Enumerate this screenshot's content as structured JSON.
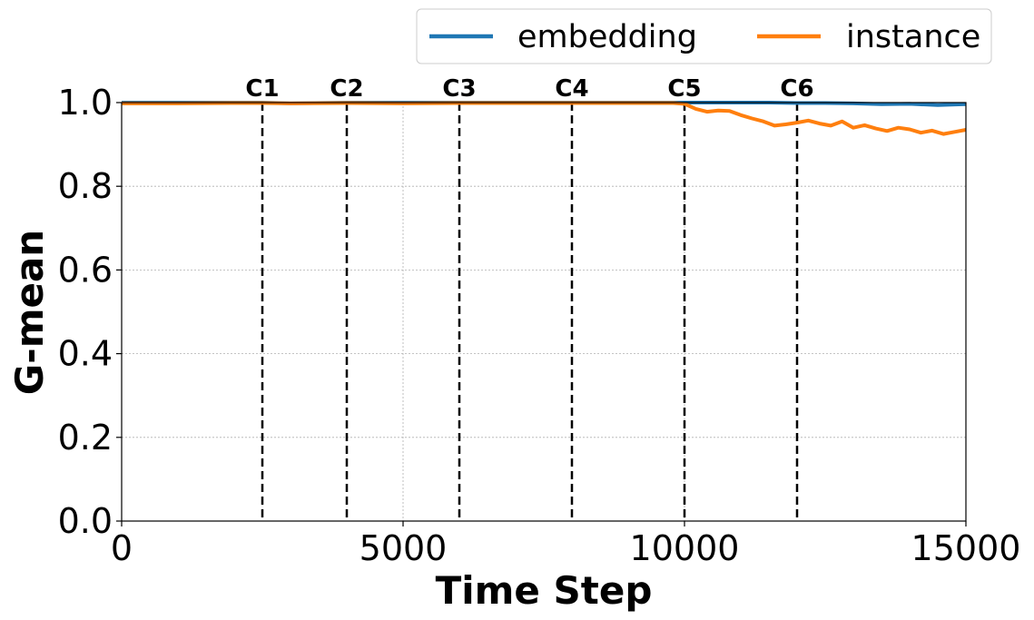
{
  "chart_data": {
    "type": "line",
    "title": "",
    "xlabel": "Time Step",
    "ylabel": "G-mean",
    "xlim": [
      0,
      15000
    ],
    "ylim": [
      0.0,
      1.0
    ],
    "x_ticks": [
      "0",
      "5000",
      "10000",
      "15000"
    ],
    "x_tick_values": [
      0,
      5000,
      10000,
      15000
    ],
    "y_ticks": [
      "0.0",
      "0.2",
      "0.4",
      "0.6",
      "0.8",
      "1.0"
    ],
    "y_tick_values": [
      0.0,
      0.2,
      0.4,
      0.6,
      0.8,
      1.0
    ],
    "grid": true,
    "legend_placement": "top-right, above plot",
    "markers": [
      {
        "label": "C1",
        "x": 2500
      },
      {
        "label": "C2",
        "x": 4000
      },
      {
        "label": "C3",
        "x": 6000
      },
      {
        "label": "C4",
        "x": 8000
      },
      {
        "label": "C5",
        "x": 10000
      },
      {
        "label": "C6",
        "x": 12000
      }
    ],
    "series": [
      {
        "name": "embedding",
        "color": "#1f77b4",
        "x": [
          0,
          1000,
          2000,
          2500,
          3000,
          4000,
          5000,
          6000,
          7000,
          8000,
          9000,
          10000,
          10500,
          11000,
          11500,
          12000,
          12500,
          13000,
          13500,
          14000,
          14500,
          15000
        ],
        "y": [
          1.0,
          1.0,
          1.0,
          1.0,
          0.998,
          1.0,
          1.0,
          1.0,
          1.0,
          1.0,
          1.0,
          1.0,
          1.0,
          1.0,
          1.0,
          0.999,
          0.999,
          0.998,
          0.996,
          0.997,
          0.994,
          0.996
        ]
      },
      {
        "name": "instance",
        "color": "#ff7f0e",
        "x": [
          0,
          1000,
          2000,
          2500,
          3000,
          4000,
          5000,
          6000,
          7000,
          8000,
          9000,
          9800,
          10000,
          10200,
          10400,
          10600,
          10800,
          11000,
          11200,
          11400,
          11600,
          11800,
          12000,
          12200,
          12400,
          12600,
          12800,
          13000,
          13200,
          13400,
          13600,
          13800,
          14000,
          14200,
          14400,
          14600,
          14800,
          15000
        ],
        "y": [
          0.998,
          0.998,
          0.999,
          0.999,
          0.998,
          0.999,
          0.998,
          0.999,
          0.999,
          0.999,
          0.999,
          0.999,
          0.997,
          0.985,
          0.978,
          0.981,
          0.98,
          0.97,
          0.962,
          0.955,
          0.945,
          0.948,
          0.952,
          0.957,
          0.95,
          0.945,
          0.955,
          0.94,
          0.946,
          0.938,
          0.932,
          0.94,
          0.936,
          0.928,
          0.933,
          0.925,
          0.93,
          0.935
        ]
      }
    ]
  }
}
